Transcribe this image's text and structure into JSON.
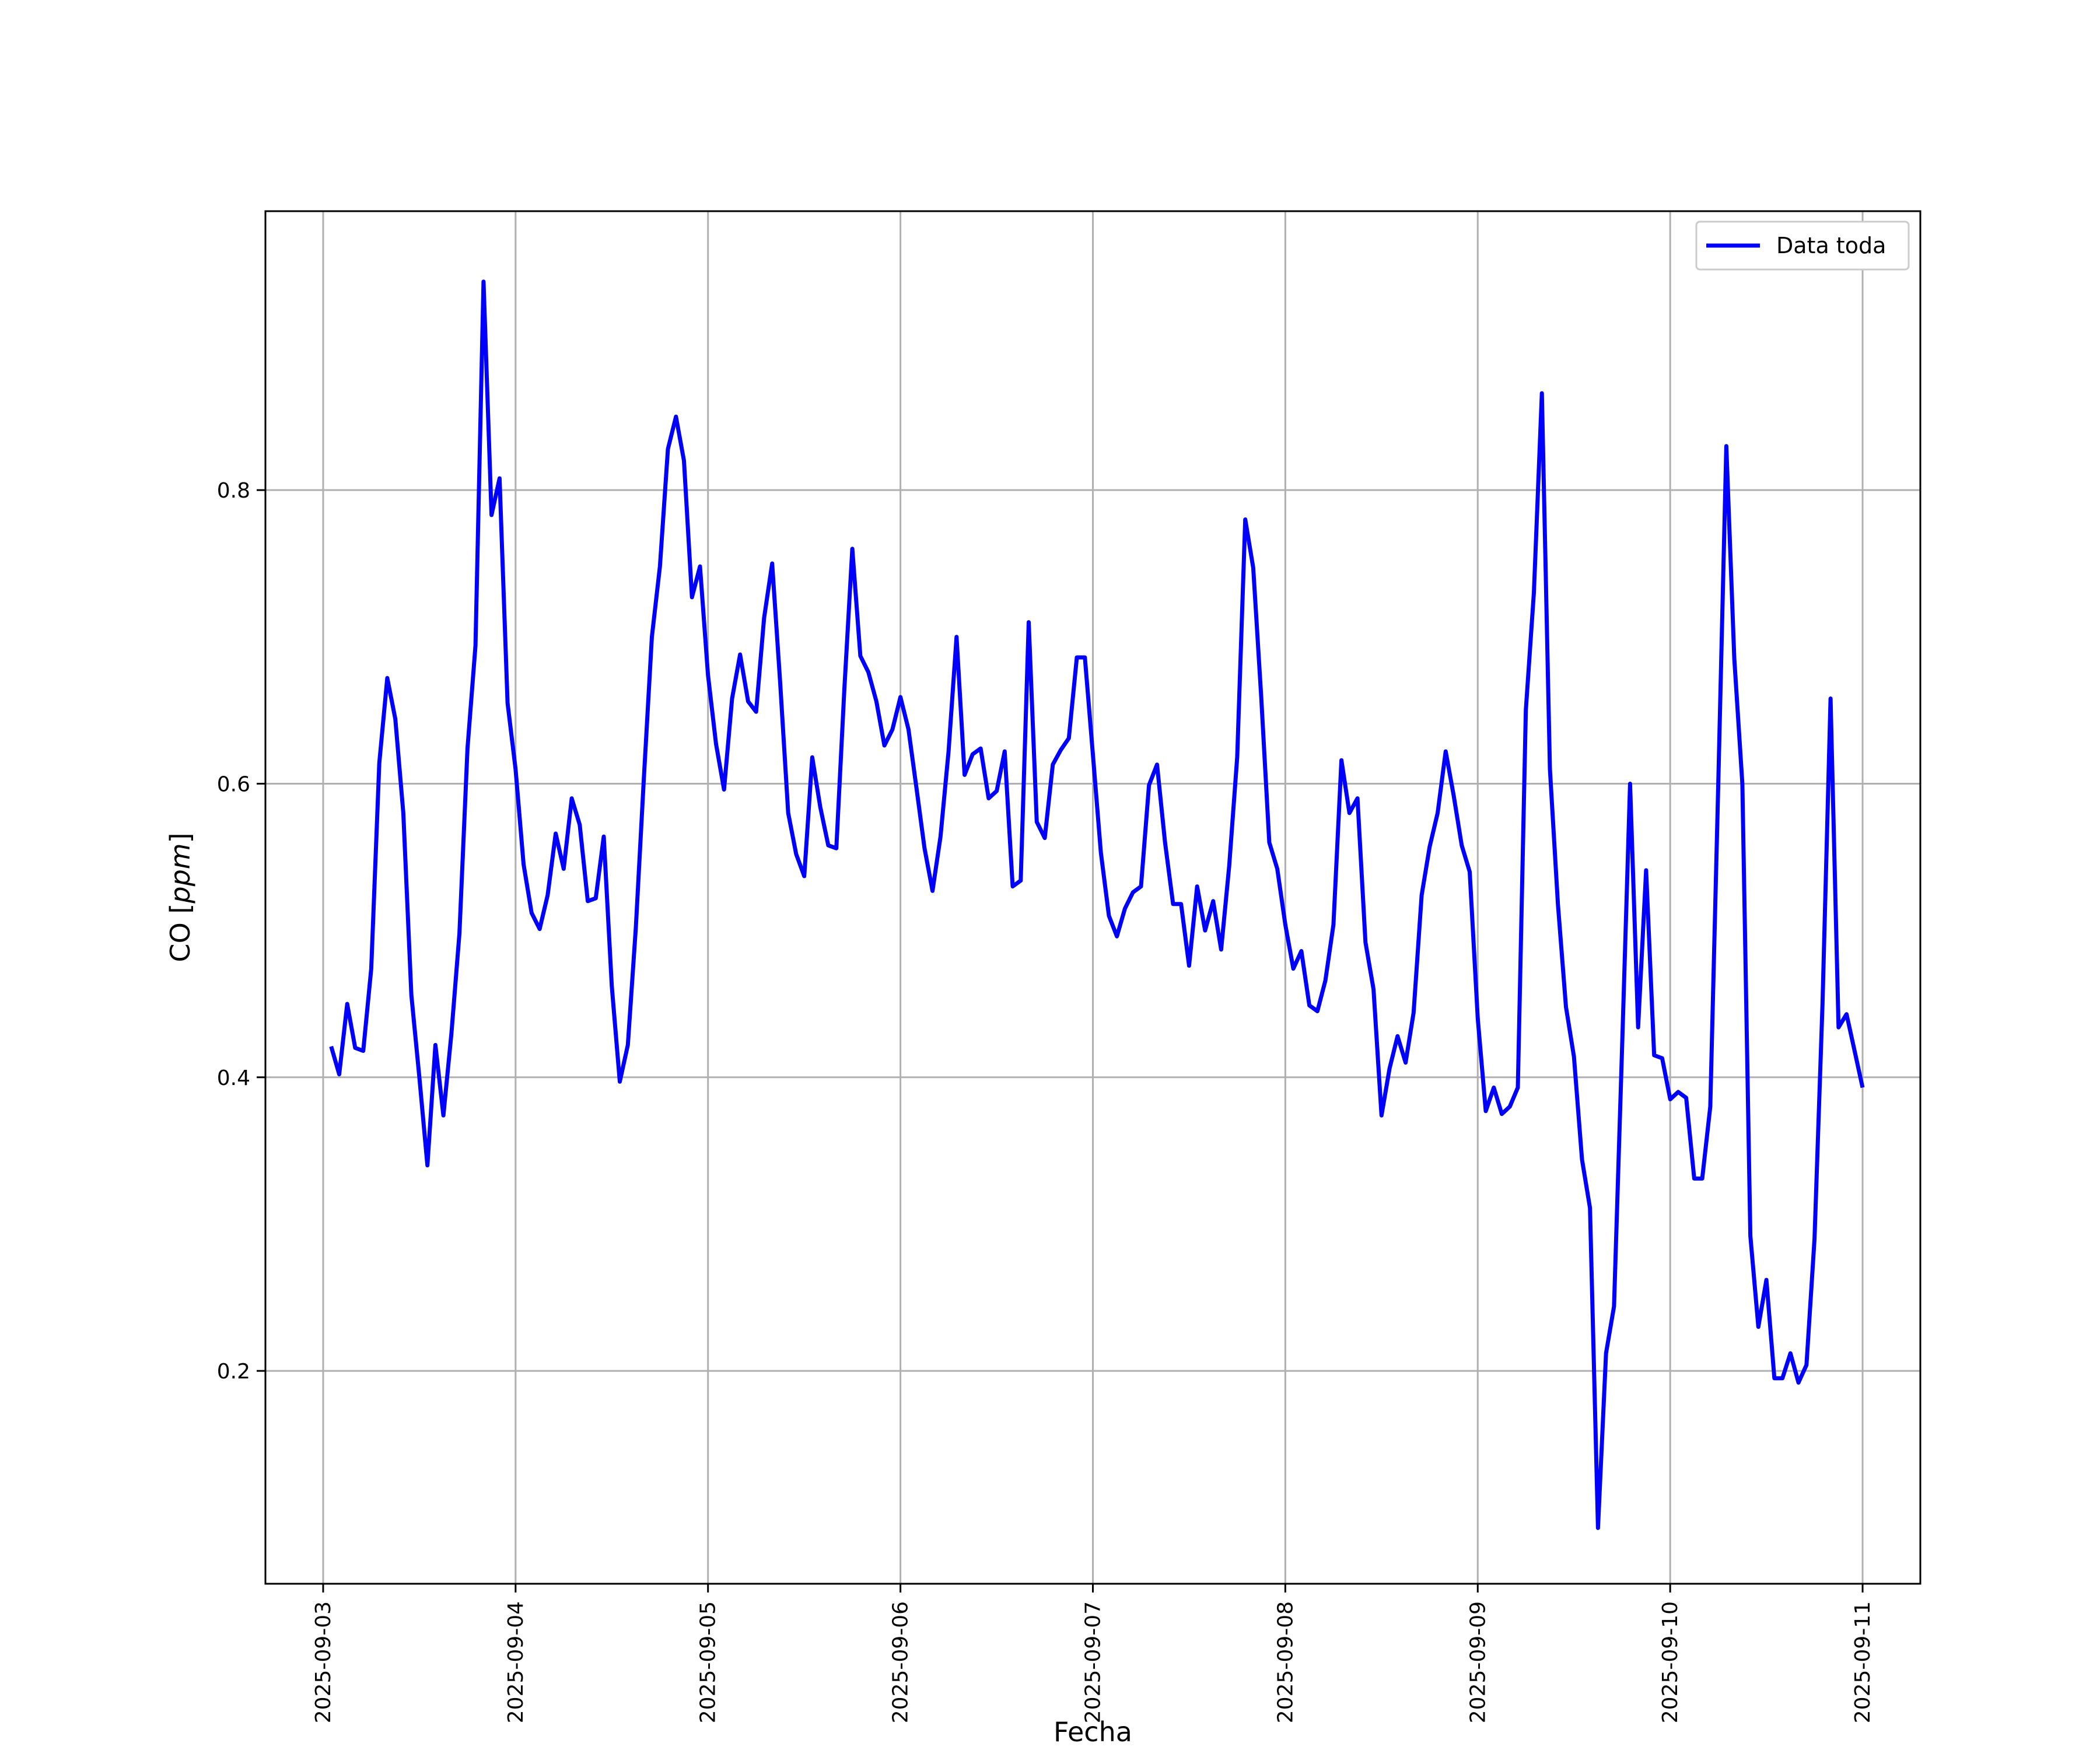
{
  "chart_data": {
    "type": "line",
    "title": "",
    "xlabel": "Fecha",
    "ylabel_prefix": "CO [",
    "ylabel_unit": "ppm",
    "ylabel_suffix": "]",
    "x_tick_labels": [
      "2025-09-03",
      "2025-09-04",
      "2025-09-05",
      "2025-09-06",
      "2025-09-07",
      "2025-09-08",
      "2025-09-09",
      "2025-09-10",
      "2025-09-11"
    ],
    "y_ticks": [
      0.2,
      0.4,
      0.6,
      0.8
    ],
    "y_tick_labels": [
      "0.2",
      "0.4",
      "0.6",
      "0.8"
    ],
    "xlim": [
      "2025-09-02T16:48",
      "2025-09-11T07:12"
    ],
    "ylim": [
      0.055,
      0.99
    ],
    "grid": true,
    "legend_position": "upper right",
    "series": [
      {
        "name": "Data toda",
        "color": "#0000ff",
        "x_start": "2025-09-03T01:00",
        "x_step_hours": 1,
        "values": [
          0.421,
          0.402,
          0.45,
          0.42,
          0.418,
          0.474,
          0.614,
          0.672,
          0.644,
          0.58,
          0.456,
          0.4,
          0.34,
          0.422,
          0.374,
          0.43,
          0.498,
          0.624,
          0.694,
          0.942,
          0.783,
          0.808,
          0.655,
          0.61,
          0.545,
          0.512,
          0.501,
          0.524,
          0.566,
          0.542,
          0.59,
          0.572,
          0.52,
          0.522,
          0.564,
          0.462,
          0.397,
          0.422,
          0.502,
          0.604,
          0.7,
          0.748,
          0.828,
          0.85,
          0.82,
          0.727,
          0.748,
          0.674,
          0.627,
          0.596,
          0.658,
          0.688,
          0.656,
          0.649,
          0.713,
          0.75,
          0.669,
          0.58,
          0.552,
          0.537,
          0.618,
          0.584,
          0.558,
          0.556,
          0.664,
          0.76,
          0.687,
          0.676,
          0.656,
          0.626,
          0.637,
          0.659,
          0.637,
          0.597,
          0.556,
          0.527,
          0.564,
          0.622,
          0.7,
          0.606,
          0.62,
          0.624,
          0.59,
          0.595,
          0.622,
          0.53,
          0.534,
          0.71,
          0.574,
          0.563,
          0.613,
          0.623,
          0.631,
          0.686,
          0.686,
          0.62,
          0.553,
          0.51,
          0.496,
          0.515,
          0.526,
          0.53,
          0.599,
          0.613,
          0.56,
          0.518,
          0.518,
          0.476,
          0.53,
          0.5,
          0.52,
          0.487,
          0.544,
          0.618,
          0.78,
          0.747,
          0.659,
          0.56,
          0.542,
          0.504,
          0.474,
          0.486,
          0.449,
          0.445,
          0.466,
          0.504,
          0.616,
          0.58,
          0.59,
          0.492,
          0.46,
          0.374,
          0.406,
          0.428,
          0.41,
          0.444,
          0.524,
          0.557,
          0.58,
          0.622,
          0.592,
          0.558,
          0.54,
          0.44,
          0.377,
          0.393,
          0.375,
          0.38,
          0.393,
          0.65,
          0.73,
          0.866,
          0.61,
          0.518,
          0.448,
          0.414,
          0.344,
          0.311,
          0.093,
          0.212,
          0.244,
          0.42,
          0.6,
          0.434,
          0.541,
          0.415,
          0.413,
          0.385,
          0.39,
          0.386,
          0.331,
          0.331,
          0.38,
          0.6,
          0.83,
          0.685,
          0.6,
          0.292,
          0.23,
          0.262,
          0.195,
          0.195,
          0.212,
          0.192,
          0.204,
          0.29,
          0.45,
          0.658,
          0.434,
          0.443,
          0.418,
          0.393
        ]
      }
    ]
  }
}
